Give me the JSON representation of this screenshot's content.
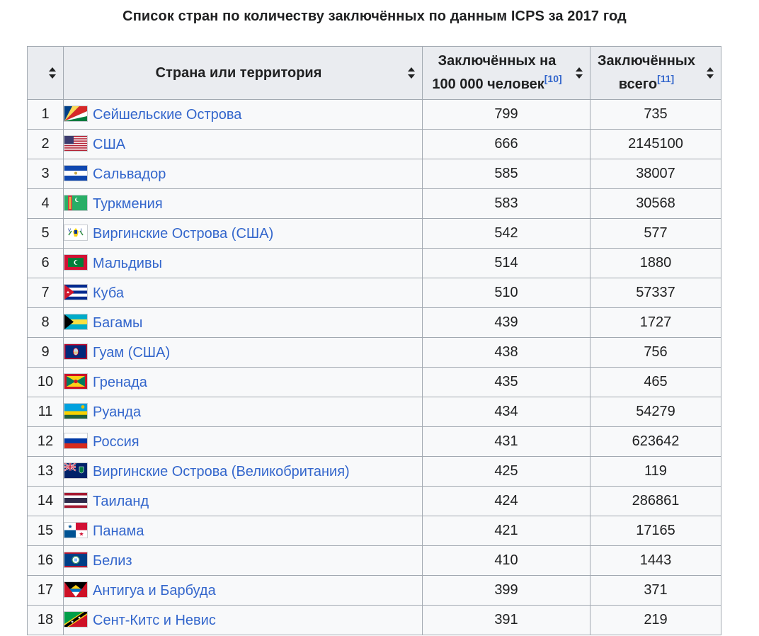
{
  "title": "Список стран по количеству заключённых по данным ICPS за 2017 год",
  "headers": {
    "rank": "",
    "country": "Страна или территория",
    "per100k_line1": "Заключённых на",
    "per100k_line2": "100 000 человек",
    "per100k_ref": "[10]",
    "total_line1": "Заключённых",
    "total_line2": "всего",
    "total_ref": "[11]"
  },
  "rows": [
    {
      "rank": "1",
      "country": "Сейшельские Острова",
      "flag": "seychelles-flag-icon",
      "per100k": "799",
      "total": "735"
    },
    {
      "rank": "2",
      "country": "США",
      "flag": "usa-flag-icon",
      "per100k": "666",
      "total": "2145100"
    },
    {
      "rank": "3",
      "country": "Сальвадор",
      "flag": "el-salvador-flag-icon",
      "per100k": "585",
      "total": "38007"
    },
    {
      "rank": "4",
      "country": "Туркмения",
      "flag": "turkmenistan-flag-icon",
      "per100k": "583",
      "total": "30568"
    },
    {
      "rank": "5",
      "country": "Виргинские Острова (США)",
      "flag": "us-virgin-islands-flag-icon",
      "per100k": "542",
      "total": "577"
    },
    {
      "rank": "6",
      "country": "Мальдивы",
      "flag": "maldives-flag-icon",
      "per100k": "514",
      "total": "1880"
    },
    {
      "rank": "7",
      "country": "Куба",
      "flag": "cuba-flag-icon",
      "per100k": "510",
      "total": "57337"
    },
    {
      "rank": "8",
      "country": "Багамы",
      "flag": "bahamas-flag-icon",
      "per100k": "439",
      "total": "1727"
    },
    {
      "rank": "9",
      "country": "Гуам (США)",
      "flag": "guam-flag-icon",
      "per100k": "438",
      "total": "756"
    },
    {
      "rank": "10",
      "country": "Гренада",
      "flag": "grenada-flag-icon",
      "per100k": "435",
      "total": "465"
    },
    {
      "rank": "11",
      "country": "Руанда",
      "flag": "rwanda-flag-icon",
      "per100k": "434",
      "total": "54279"
    },
    {
      "rank": "12",
      "country": "Россия",
      "flag": "russia-flag-icon",
      "per100k": "431",
      "total": "623642"
    },
    {
      "rank": "13",
      "country": "Виргинские Острова (Великобритания)",
      "flag": "british-virgin-islands-flag-icon",
      "per100k": "425",
      "total": "119"
    },
    {
      "rank": "14",
      "country": "Таиланд",
      "flag": "thailand-flag-icon",
      "per100k": "424",
      "total": "286861"
    },
    {
      "rank": "15",
      "country": "Панама",
      "flag": "panama-flag-icon",
      "per100k": "421",
      "total": "17165"
    },
    {
      "rank": "16",
      "country": "Белиз",
      "flag": "belize-flag-icon",
      "per100k": "410",
      "total": "1443"
    },
    {
      "rank": "17",
      "country": "Антигуа и Барбуда",
      "flag": "antigua-barbuda-flag-icon",
      "per100k": "399",
      "total": "371"
    },
    {
      "rank": "18",
      "country": "Сент-Китс и Невис",
      "flag": "saint-kitts-nevis-flag-icon",
      "per100k": "391",
      "total": "219"
    }
  ],
  "colors": {
    "link": "#3366cc",
    "header_bg": "#eaecf0",
    "cell_bg": "#f8f9fa",
    "border": "#a2a9b1"
  }
}
